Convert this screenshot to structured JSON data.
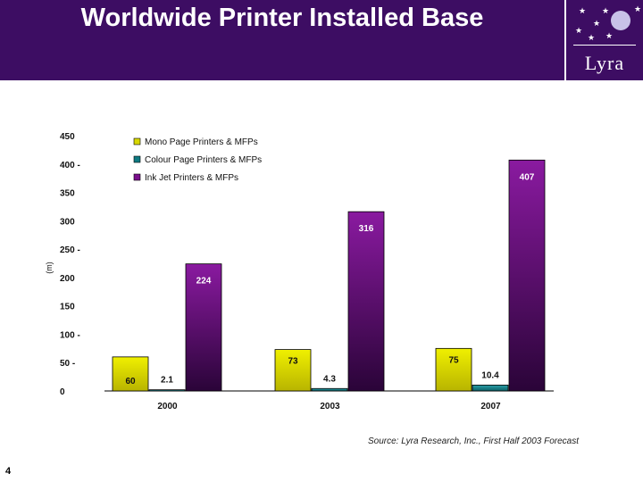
{
  "slide": {
    "title": "Worldwide Printer Installed Base",
    "logo": "Lyra",
    "source": "Source: Lyra Research, Inc., First Half 2003 Forecast",
    "page_number": "4"
  },
  "colors": {
    "header_bg": "#3d0d63",
    "mono": "#d8d800",
    "colour": "#0f7a82",
    "inkjet": "#7a0f8c"
  },
  "chart_data": {
    "type": "bar",
    "title": "",
    "xlabel": "",
    "ylabel": "(m)",
    "ylim": [
      0,
      450
    ],
    "yticks": [
      "0",
      "50 -",
      "100 -",
      "150",
      "200",
      "250 -",
      "300",
      "350",
      "400 -",
      "450"
    ],
    "ytick_values": [
      0,
      50,
      100,
      150,
      200,
      250,
      300,
      350,
      400,
      450
    ],
    "categories": [
      "2000",
      "2003",
      "2007"
    ],
    "series": [
      {
        "name": "Mono Page Printers & MFPs",
        "values": [
          60,
          73,
          75
        ],
        "labels": [
          "60",
          "73",
          "75"
        ],
        "color": "#d8d800"
      },
      {
        "name": "Colour Page Printers & MFPs",
        "values": [
          2.1,
          4.3,
          10.4
        ],
        "labels": [
          "2.1",
          "4.3",
          "10.4"
        ],
        "color": "#0f7a82"
      },
      {
        "name": "Ink Jet Printers & MFPs",
        "values": [
          224,
          316,
          407
        ],
        "labels": [
          "224",
          "316",
          "407"
        ],
        "color": "#7a0f8c"
      }
    ],
    "legend_position": "top-left",
    "grid": false
  }
}
